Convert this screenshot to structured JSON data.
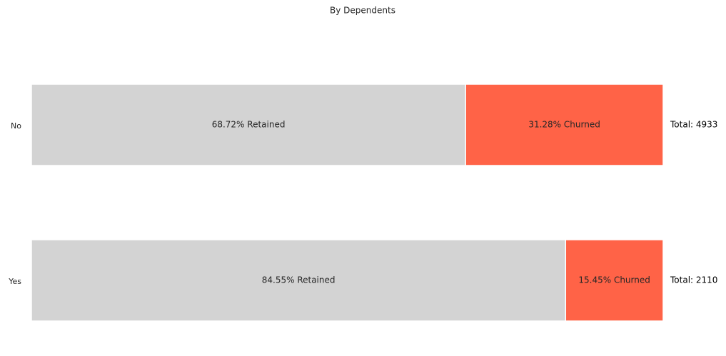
{
  "chart_data": {
    "type": "stacked-barh",
    "title": "By Dependents",
    "categories": [
      "No",
      "Yes"
    ],
    "series": [
      {
        "name": "Retained",
        "color": "#d3d3d3",
        "values": [
          68.72,
          84.55
        ],
        "value_labels": [
          "68.72% Retained",
          "84.55% Retained"
        ]
      },
      {
        "name": "Churned",
        "color": "#ff6347",
        "values": [
          31.28,
          15.45
        ],
        "value_labels": [
          "31.28% Churned",
          "15.45% Churned"
        ]
      }
    ],
    "annotations": [
      "Total: 4933",
      "Total: 2110"
    ],
    "xlim": [
      0,
      100
    ]
  }
}
